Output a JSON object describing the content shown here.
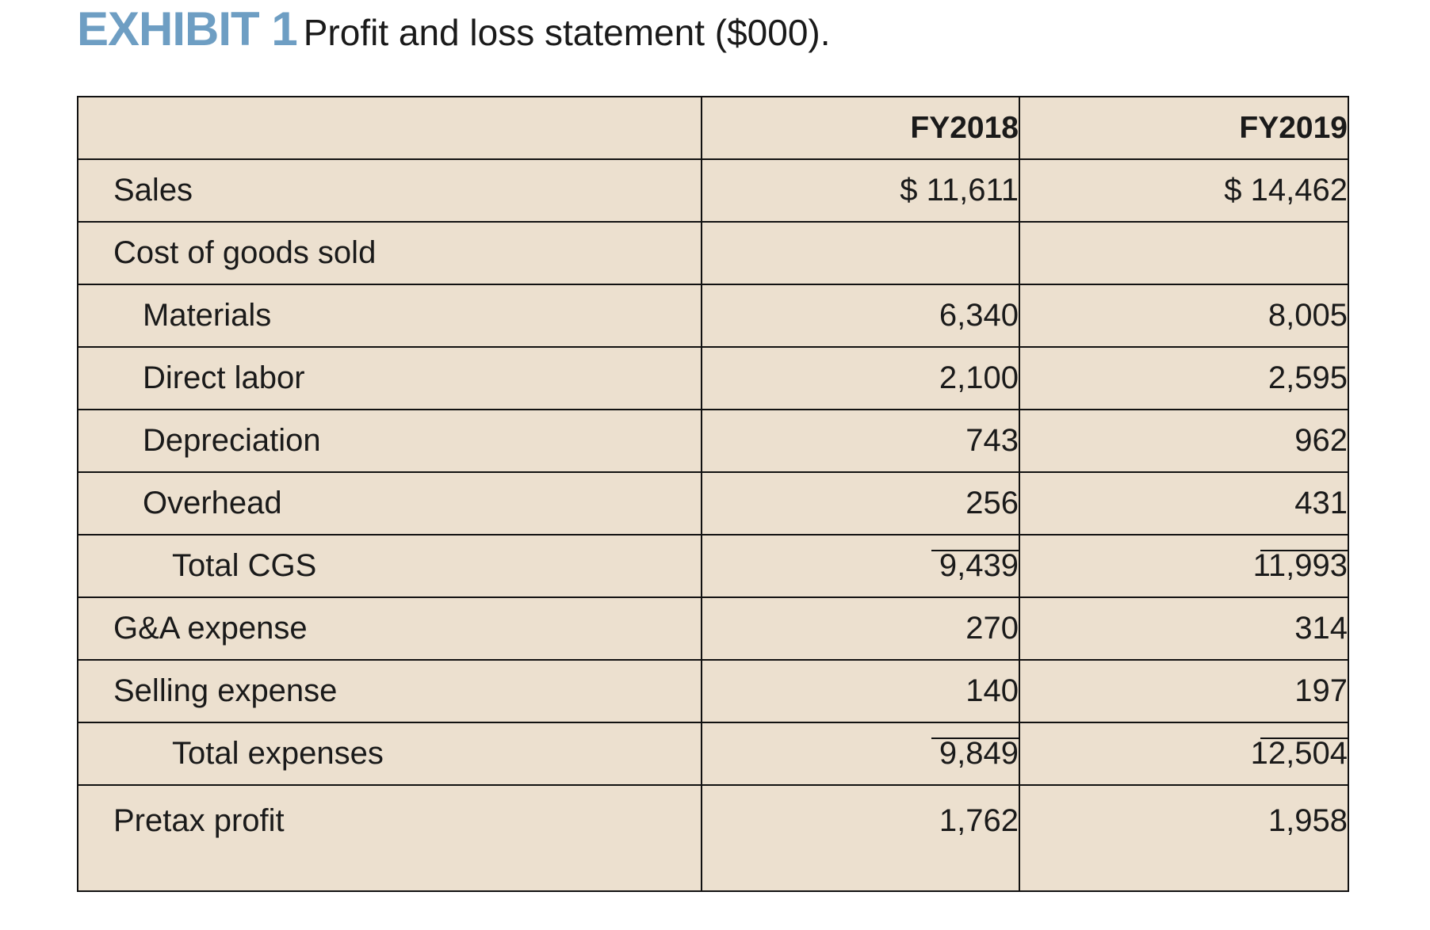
{
  "header": {
    "label": "EXHIBIT 1",
    "title": "Profit and loss statement ($000)."
  },
  "table": {
    "columns": [
      "FY2018",
      "FY2019"
    ],
    "rows": [
      {
        "label": "Sales",
        "values": [
          "$ 11,611",
          "$ 14,462"
        ]
      },
      {
        "label": "Cost of goods sold"
      },
      {
        "label": "Materials",
        "values": [
          "6,340",
          "8,005"
        ]
      },
      {
        "label": "Direct labor",
        "values": [
          "2,100",
          "2,595"
        ]
      },
      {
        "label": "Depreciation",
        "values": [
          "743",
          "962"
        ]
      },
      {
        "label": "Overhead",
        "values": [
          "256",
          "431"
        ]
      },
      {
        "label": "Total CGS",
        "values": [
          "9,439",
          "11,993"
        ]
      },
      {
        "label": "G&A expense",
        "values": [
          "270",
          "314"
        ]
      },
      {
        "label": "Selling expense",
        "values": [
          "140",
          "197"
        ]
      },
      {
        "label": "Total expenses",
        "values": [
          "9,849",
          "12,504"
        ]
      },
      {
        "label": "Pretax profit",
        "values": [
          "1,762",
          "1,958"
        ]
      }
    ]
  }
}
